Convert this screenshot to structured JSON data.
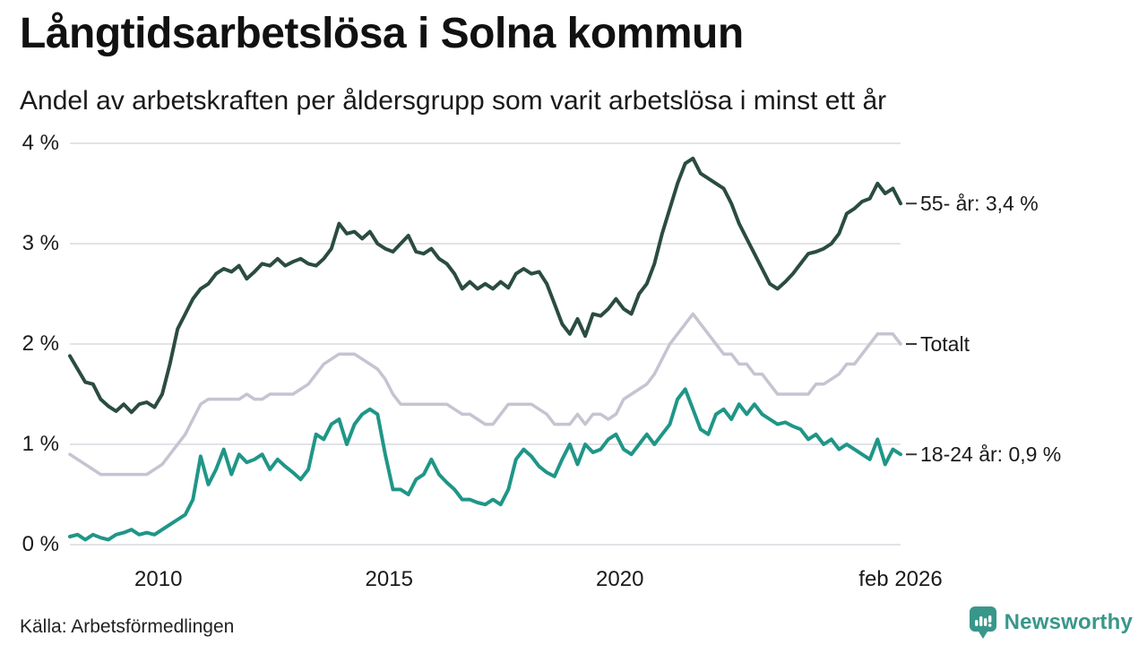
{
  "header": {
    "title": "Långtidsarbetslösa i Solna kommun",
    "subtitle": "Andel av arbetskraften per åldersgrupp som varit arbetslösa i minst ett år"
  },
  "footer": {
    "source": "Källa: Arbetsförmedlingen",
    "brand": "Newsworthy"
  },
  "colors": {
    "series_55": "#2b4c40",
    "series_total": "#c5c4d1",
    "series_1824": "#1f9687",
    "grid": "#e2e2e8",
    "end_tick_dash": "#3c3c3c",
    "text": "#1a1a1a",
    "brand_teal": "#38978a"
  },
  "chart_data": {
    "type": "line",
    "title": "Långtidsarbetslösa i Solna kommun",
    "subtitle": "Andel av arbetskraften per åldersgrupp som varit arbetslösa i minst ett år",
    "unit": "%",
    "x_start": 2008.083,
    "x_end": 2026.083,
    "x_step_months": 2,
    "ylim": [
      0,
      4
    ],
    "grid": "horizontal",
    "legend_position": "end-of-line",
    "yticks": [
      {
        "value": 0,
        "label": "0 %"
      },
      {
        "value": 1,
        "label": "1 %"
      },
      {
        "value": 2,
        "label": "2 %"
      },
      {
        "value": 3,
        "label": "3 %"
      },
      {
        "value": 4,
        "label": "4 %"
      }
    ],
    "xticks": [
      {
        "year": 2010,
        "label": "2010"
      },
      {
        "year": 2015,
        "label": "2015"
      },
      {
        "year": 2020,
        "label": "2020"
      },
      {
        "year": 2026.083,
        "label": "feb 2026"
      }
    ],
    "series": [
      {
        "name": "55- år",
        "end_label": "55- år: 3,4 %",
        "last_value": 3.4,
        "color": "#2b4c40",
        "values": [
          1.88,
          1.75,
          1.62,
          1.6,
          1.45,
          1.38,
          1.33,
          1.4,
          1.32,
          1.4,
          1.42,
          1.37,
          1.5,
          1.8,
          2.15,
          2.3,
          2.45,
          2.55,
          2.6,
          2.7,
          2.75,
          2.72,
          2.78,
          2.65,
          2.72,
          2.8,
          2.78,
          2.85,
          2.78,
          2.82,
          2.85,
          2.8,
          2.78,
          2.85,
          2.95,
          3.2,
          3.1,
          3.12,
          3.05,
          3.12,
          3.0,
          2.95,
          2.92,
          3.0,
          3.08,
          2.92,
          2.9,
          2.95,
          2.85,
          2.8,
          2.7,
          2.55,
          2.62,
          2.55,
          2.6,
          2.55,
          2.62,
          2.56,
          2.7,
          2.75,
          2.7,
          2.72,
          2.6,
          2.4,
          2.2,
          2.1,
          2.25,
          2.08,
          2.3,
          2.28,
          2.35,
          2.45,
          2.35,
          2.3,
          2.5,
          2.6,
          2.8,
          3.1,
          3.35,
          3.6,
          3.8,
          3.85,
          3.7,
          3.65,
          3.6,
          3.55,
          3.4,
          3.2,
          3.05,
          2.9,
          2.75,
          2.6,
          2.55,
          2.62,
          2.7,
          2.8,
          2.9,
          2.92,
          2.95,
          3.0,
          3.1,
          3.3,
          3.35,
          3.42,
          3.45,
          3.6,
          3.5,
          3.55,
          3.4
        ]
      },
      {
        "name": "Totalt",
        "end_label": "Totalt",
        "last_value": 2.0,
        "color": "#c5c4d1",
        "values": [
          0.9,
          0.85,
          0.8,
          0.75,
          0.7,
          0.7,
          0.7,
          0.7,
          0.7,
          0.7,
          0.7,
          0.75,
          0.8,
          0.9,
          1.0,
          1.1,
          1.25,
          1.4,
          1.45,
          1.45,
          1.45,
          1.45,
          1.45,
          1.5,
          1.45,
          1.45,
          1.5,
          1.5,
          1.5,
          1.5,
          1.55,
          1.6,
          1.7,
          1.8,
          1.85,
          1.9,
          1.9,
          1.9,
          1.85,
          1.8,
          1.75,
          1.65,
          1.5,
          1.4,
          1.4,
          1.4,
          1.4,
          1.4,
          1.4,
          1.4,
          1.35,
          1.3,
          1.3,
          1.25,
          1.2,
          1.2,
          1.3,
          1.4,
          1.4,
          1.4,
          1.4,
          1.35,
          1.3,
          1.2,
          1.2,
          1.2,
          1.3,
          1.2,
          1.3,
          1.3,
          1.25,
          1.3,
          1.45,
          1.5,
          1.55,
          1.6,
          1.7,
          1.85,
          2.0,
          2.1,
          2.2,
          2.3,
          2.2,
          2.1,
          2.0,
          1.9,
          1.9,
          1.8,
          1.8,
          1.7,
          1.7,
          1.6,
          1.5,
          1.5,
          1.5,
          1.5,
          1.5,
          1.6,
          1.6,
          1.65,
          1.7,
          1.8,
          1.8,
          1.9,
          2.0,
          2.1,
          2.1,
          2.1,
          2.0
        ]
      },
      {
        "name": "18-24 år",
        "end_label": "18-24 år: 0,9 %",
        "last_value": 0.9,
        "color": "#1f9687",
        "values": [
          0.08,
          0.1,
          0.05,
          0.1,
          0.07,
          0.05,
          0.1,
          0.12,
          0.15,
          0.1,
          0.12,
          0.1,
          0.15,
          0.2,
          0.25,
          0.3,
          0.45,
          0.88,
          0.6,
          0.75,
          0.95,
          0.7,
          0.9,
          0.82,
          0.85,
          0.9,
          0.75,
          0.85,
          0.78,
          0.72,
          0.65,
          0.75,
          1.1,
          1.05,
          1.2,
          1.25,
          1.0,
          1.2,
          1.3,
          1.35,
          1.3,
          0.9,
          0.55,
          0.55,
          0.5,
          0.65,
          0.7,
          0.85,
          0.7,
          0.62,
          0.55,
          0.45,
          0.45,
          0.42,
          0.4,
          0.45,
          0.4,
          0.55,
          0.85,
          0.95,
          0.88,
          0.78,
          0.72,
          0.68,
          0.85,
          1.0,
          0.8,
          1.0,
          0.92,
          0.95,
          1.05,
          1.1,
          0.95,
          0.9,
          1.0,
          1.1,
          1.0,
          1.1,
          1.2,
          1.45,
          1.55,
          1.35,
          1.15,
          1.1,
          1.3,
          1.35,
          1.25,
          1.4,
          1.3,
          1.4,
          1.3,
          1.25,
          1.2,
          1.22,
          1.18,
          1.15,
          1.05,
          1.1,
          1.0,
          1.05,
          0.95,
          1.0,
          0.95,
          0.9,
          0.85,
          1.05,
          0.8,
          0.95,
          0.9
        ]
      }
    ]
  }
}
